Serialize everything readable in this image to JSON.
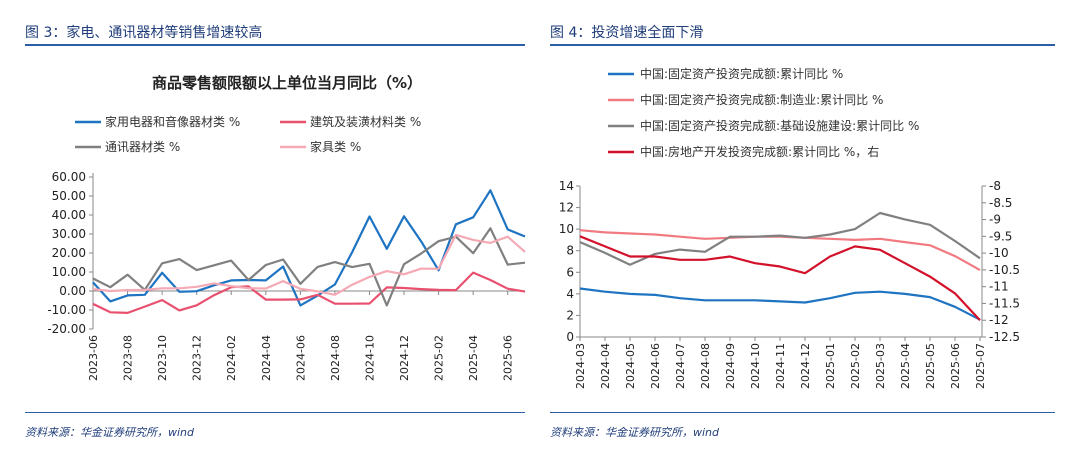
{
  "left": {
    "panel_title": "图 3：家电、通讯器材等销售增速较高",
    "source": "资料来源：华金证券研究所，wind"
  },
  "right": {
    "panel_title": "图 4：投资增速全面下滑",
    "source": "资料来源：华金证券研究所，wind"
  },
  "colors": {
    "accent": "#2b5fa6",
    "title": "#1f3d7a"
  },
  "chart_data": [
    {
      "type": "line",
      "title": "商品零售额限额以上单位当月同比（%）",
      "legend_position": "top",
      "x": [
        "2023-06",
        "2023-07",
        "2023-08",
        "2023-09",
        "2023-10",
        "2023-11",
        "2023-12",
        "2024-01",
        "2024-02",
        "2024-03",
        "2024-04",
        "2024-05",
        "2024-06",
        "2024-07",
        "2024-08",
        "2024-09",
        "2024-10",
        "2024-11",
        "2024-12",
        "2025-01",
        "2025-02",
        "2025-03",
        "2025-04",
        "2025-05",
        "2025-06",
        "2025-07"
      ],
      "x_tick_labels": [
        "2023-06",
        "2023-08",
        "2023-10",
        "2023-12",
        "2024-02",
        "2024-04",
        "2024-06",
        "2024-08",
        "2024-10",
        "2024-12",
        "2025-02",
        "2025-04",
        "2025-06"
      ],
      "y_tick_labels": [
        "60.00",
        "50.00",
        "40.00",
        "30.00",
        "20.00",
        "10.00",
        "0.00",
        "-10.00",
        "-20.00"
      ],
      "ylim": [
        -20,
        60
      ],
      "grid": false,
      "series": [
        {
          "name": "家用电器和音像器材类 %",
          "color": "#1f74c2",
          "values": [
            4.5,
            -5.5,
            -2.3,
            -2.0,
            9.6,
            -0.4,
            -0.1,
            3.0,
            5.6,
            5.8,
            5.6,
            12.9,
            -7.6,
            -2.4,
            3.4,
            20.5,
            39.2,
            22.2,
            39.3,
            26.0,
            10.9,
            35.1,
            38.8,
            53.0,
            32.4,
            28.7
          ]
        },
        {
          "name": "建筑及装潢材料类 %",
          "color": "#e8506e",
          "values": [
            -6.8,
            -11.2,
            -11.5,
            -8.2,
            -4.8,
            -10.2,
            -7.5,
            -2.2,
            2.0,
            2.4,
            -4.5,
            -4.5,
            -4.4,
            -2.0,
            -6.7,
            -6.7,
            -6.6,
            1.9,
            1.6,
            1.0,
            0.6,
            0.5,
            9.7,
            5.8,
            1.2,
            -0.3
          ]
        },
        {
          "name": "通讯器材类 %",
          "color": "#808080",
          "values": [
            6.6,
            2.0,
            8.6,
            0.6,
            14.6,
            16.8,
            11.0,
            13.5,
            16.0,
            5.8,
            13.7,
            16.6,
            3.8,
            12.7,
            15.2,
            12.6,
            14.3,
            -7.6,
            14.1,
            19.8,
            26.2,
            28.6,
            19.9,
            33.0,
            13.9,
            14.9
          ]
        },
        {
          "name": "家具类 %",
          "color": "#f5a9b4",
          "values": [
            1.0,
            0.0,
            0.5,
            0.6,
            1.4,
            1.4,
            2.2,
            4.0,
            2.6,
            1.5,
            1.3,
            5.2,
            1.1,
            -0.2,
            -2.0,
            3.3,
            7.4,
            10.5,
            8.8,
            11.8,
            11.7,
            29.5,
            26.9,
            25.3,
            28.6,
            20.6
          ]
        }
      ]
    },
    {
      "type": "line",
      "title": "",
      "legend_position": "top",
      "x": [
        "2024-03",
        "2024-04",
        "2024-05",
        "2024-06",
        "2024-07",
        "2024-08",
        "2024-09",
        "2024-10",
        "2024-11",
        "2024-12",
        "2025-01",
        "2025-02",
        "2025-03",
        "2025-04",
        "2025-05",
        "2025-06",
        "2025-07"
      ],
      "y_left_tick_labels": [
        "14",
        "12",
        "10",
        "8",
        "6",
        "4",
        "2",
        "0"
      ],
      "y_left_lim": [
        0,
        14
      ],
      "y_right_tick_labels": [
        "-8",
        "-8.5",
        "-9",
        "-9.5",
        "-10",
        "-10.5",
        "-11",
        "-11.5",
        "-12",
        "-12.5"
      ],
      "y_right_lim": [
        -12.5,
        -8
      ],
      "grid": false,
      "series": [
        {
          "name": "中国:固定资产投资完成额:累计同比 %",
          "color": "#1f74c2",
          "axis": "left",
          "values": [
            4.5,
            4.2,
            4.0,
            3.9,
            3.6,
            3.4,
            3.4,
            3.4,
            3.3,
            3.2,
            3.6,
            4.1,
            4.2,
            4.0,
            3.7,
            2.8,
            1.6
          ]
        },
        {
          "name": "中国:固定资产投资完成额:制造业:累计同比 %",
          "color": "#f07a80",
          "axis": "left",
          "values": [
            9.9,
            9.7,
            9.6,
            9.5,
            9.3,
            9.1,
            9.2,
            9.3,
            9.3,
            9.2,
            9.1,
            9.0,
            9.1,
            8.8,
            8.5,
            7.5,
            6.2
          ]
        },
        {
          "name": "中国:固定资产投资完成额:基础设施建设:累计同比 %",
          "color": "#808080",
          "axis": "left",
          "values": [
            8.8,
            7.8,
            6.7,
            7.7,
            8.1,
            7.9,
            9.3,
            9.3,
            9.4,
            9.2,
            9.5,
            10.0,
            11.5,
            10.9,
            10.4,
            8.9,
            7.3
          ]
        },
        {
          "name": "中国:房地产开发投资完成额:累计同比 %，右",
          "color": "#d4112b",
          "axis": "right",
          "values": [
            -9.5,
            -9.8,
            -10.1,
            -10.1,
            -10.2,
            -10.2,
            -10.1,
            -10.3,
            -10.4,
            -10.6,
            -10.1,
            -9.8,
            -9.9,
            -10.3,
            -10.7,
            -11.2,
            -12.0
          ]
        }
      ]
    }
  ]
}
